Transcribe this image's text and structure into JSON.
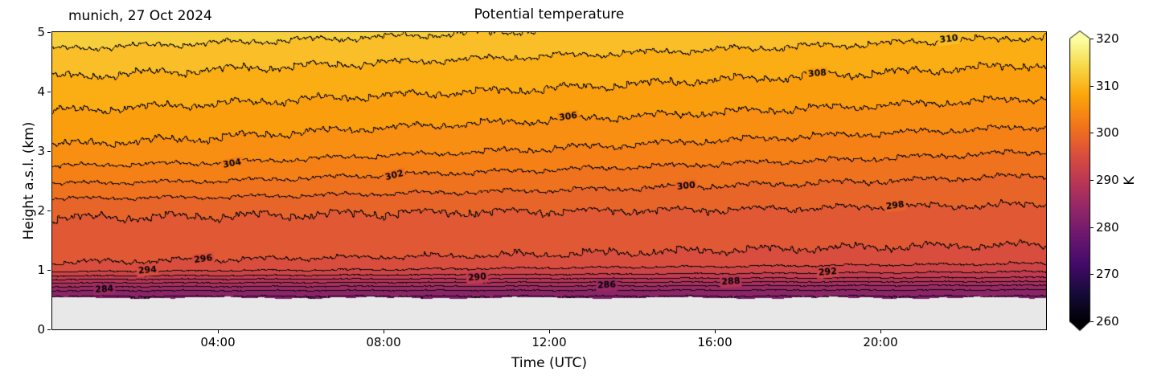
{
  "figure": {
    "title": "Potential temperature",
    "annotation": "munich, 27 Oct 2024",
    "xlabel": "Time (UTC)",
    "ylabel": "Height a.s.l. (km)"
  },
  "axes": {
    "x_ticks": [
      {
        "value": 4,
        "label": "04:00"
      },
      {
        "value": 8,
        "label": "08:00"
      },
      {
        "value": 12,
        "label": "12:00"
      },
      {
        "value": 16,
        "label": "16:00"
      },
      {
        "value": 20,
        "label": "20:00"
      }
    ],
    "y_ticks": [
      {
        "value": 0,
        "label": "0"
      },
      {
        "value": 1,
        "label": "1"
      },
      {
        "value": 2,
        "label": "2"
      },
      {
        "value": 3,
        "label": "3"
      },
      {
        "value": 4,
        "label": "4"
      },
      {
        "value": 5,
        "label": "5"
      }
    ]
  },
  "colorbar": {
    "label": "K",
    "min": 260,
    "max": 320,
    "ticks": [
      260,
      270,
      280,
      290,
      300,
      310,
      320
    ],
    "colormap": "inferno",
    "stops": [
      "#000004",
      "#160b39",
      "#420a68",
      "#6a176e",
      "#932667",
      "#bc3754",
      "#dd513a",
      "#f37819",
      "#fca50a",
      "#f6d746",
      "#fcffa4"
    ],
    "nodata_color": "#e8e8e8"
  },
  "chart_data": {
    "type": "heatmap",
    "title": "Potential temperature",
    "xlabel": "Time (UTC)",
    "ylabel": "Height a.s.l. (km)",
    "units": "K",
    "x_range_hours": [
      0,
      24
    ],
    "y_range_km": [
      0,
      5
    ],
    "contour_interval_K": 2,
    "surface_height_km": 0.53,
    "times_hours": [
      0,
      4,
      8,
      12,
      16,
      20,
      24
    ],
    "heights_km": [
      0.55,
      0.6,
      0.65,
      0.7,
      0.75,
      0.8,
      0.85,
      0.9,
      0.95,
      1.0,
      1.1,
      1.25,
      1.5,
      1.75,
      2.0,
      2.5,
      3.0,
      3.5,
      4.0,
      4.5,
      5.0
    ],
    "theta_K": [
      [
        281.8,
        283.0,
        283.9,
        285.4,
        286.9,
        288.6,
        290.3,
        292.0,
        293.5,
        294.6,
        295.9,
        296.6,
        297.1,
        297.6,
        298.4,
        302.3,
        305.6,
        307.4,
        309.1,
        310.9,
        313.3
      ],
      [
        281.8,
        283.0,
        283.9,
        285.3,
        286.8,
        288.5,
        290.1,
        291.8,
        293.2,
        294.2,
        295.6,
        296.4,
        297.0,
        297.5,
        298.3,
        302.0,
        305.2,
        306.9,
        308.7,
        310.4,
        312.8
      ],
      [
        281.8,
        282.9,
        283.8,
        285.2,
        286.7,
        288.3,
        290.0,
        291.5,
        292.9,
        293.9,
        295.2,
        296.2,
        296.8,
        297.4,
        298.1,
        301.4,
        304.4,
        306.4,
        308.2,
        310.0,
        312.3
      ],
      [
        281.8,
        282.9,
        283.8,
        285.1,
        286.6,
        288.2,
        289.8,
        291.3,
        292.6,
        293.5,
        294.9,
        296.0,
        296.7,
        297.3,
        298.0,
        300.9,
        303.8,
        305.9,
        307.8,
        309.5,
        311.8
      ],
      [
        281.8,
        282.9,
        283.7,
        285.0,
        286.4,
        288.1,
        289.6,
        291.1,
        292.2,
        293.1,
        294.6,
        295.7,
        296.6,
        297.2,
        297.9,
        300.4,
        303.2,
        305.4,
        307.3,
        309.0,
        311.3
      ],
      [
        281.8,
        282.8,
        283.7,
        284.9,
        286.3,
        287.9,
        289.5,
        290.8,
        291.9,
        292.8,
        294.2,
        295.5,
        296.4,
        297.1,
        297.7,
        300.0,
        302.6,
        304.9,
        306.9,
        308.6,
        310.8
      ],
      [
        281.8,
        282.8,
        283.6,
        284.8,
        286.2,
        287.8,
        289.3,
        290.6,
        291.6,
        292.4,
        293.9,
        295.3,
        296.3,
        297.0,
        297.6,
        299.5,
        302.0,
        304.4,
        306.4,
        308.1,
        310.3
      ]
    ],
    "contour_labels": [
      {
        "text": "284",
        "t": 1.26,
        "h": 0.66,
        "rot": -4
      },
      {
        "text": "294",
        "t": 2.3,
        "h": 0.98,
        "rot": -5
      },
      {
        "text": "296",
        "t": 3.65,
        "h": 1.17,
        "rot": -7
      },
      {
        "text": "304",
        "t": 4.35,
        "h": 2.78,
        "rot": -10
      },
      {
        "text": "302",
        "t": 8.27,
        "h": 2.58,
        "rot": -14
      },
      {
        "text": "290",
        "t": 10.27,
        "h": 0.86,
        "rot": -4
      },
      {
        "text": "306",
        "t": 12.47,
        "h": 3.57,
        "rot": -8
      },
      {
        "text": "286",
        "t": 13.4,
        "h": 0.73,
        "rot": -2
      },
      {
        "text": "300",
        "t": 15.32,
        "h": 2.4,
        "rot": -6
      },
      {
        "text": "288",
        "t": 16.4,
        "h": 0.79,
        "rot": -3
      },
      {
        "text": "308",
        "t": 18.49,
        "h": 4.3,
        "rot": -5
      },
      {
        "text": "292",
        "t": 18.74,
        "h": 0.95,
        "rot": -5
      },
      {
        "text": "298",
        "t": 20.37,
        "h": 2.07,
        "rot": -7
      },
      {
        "text": "310",
        "t": 21.67,
        "h": 4.88,
        "rot": -7
      }
    ]
  }
}
